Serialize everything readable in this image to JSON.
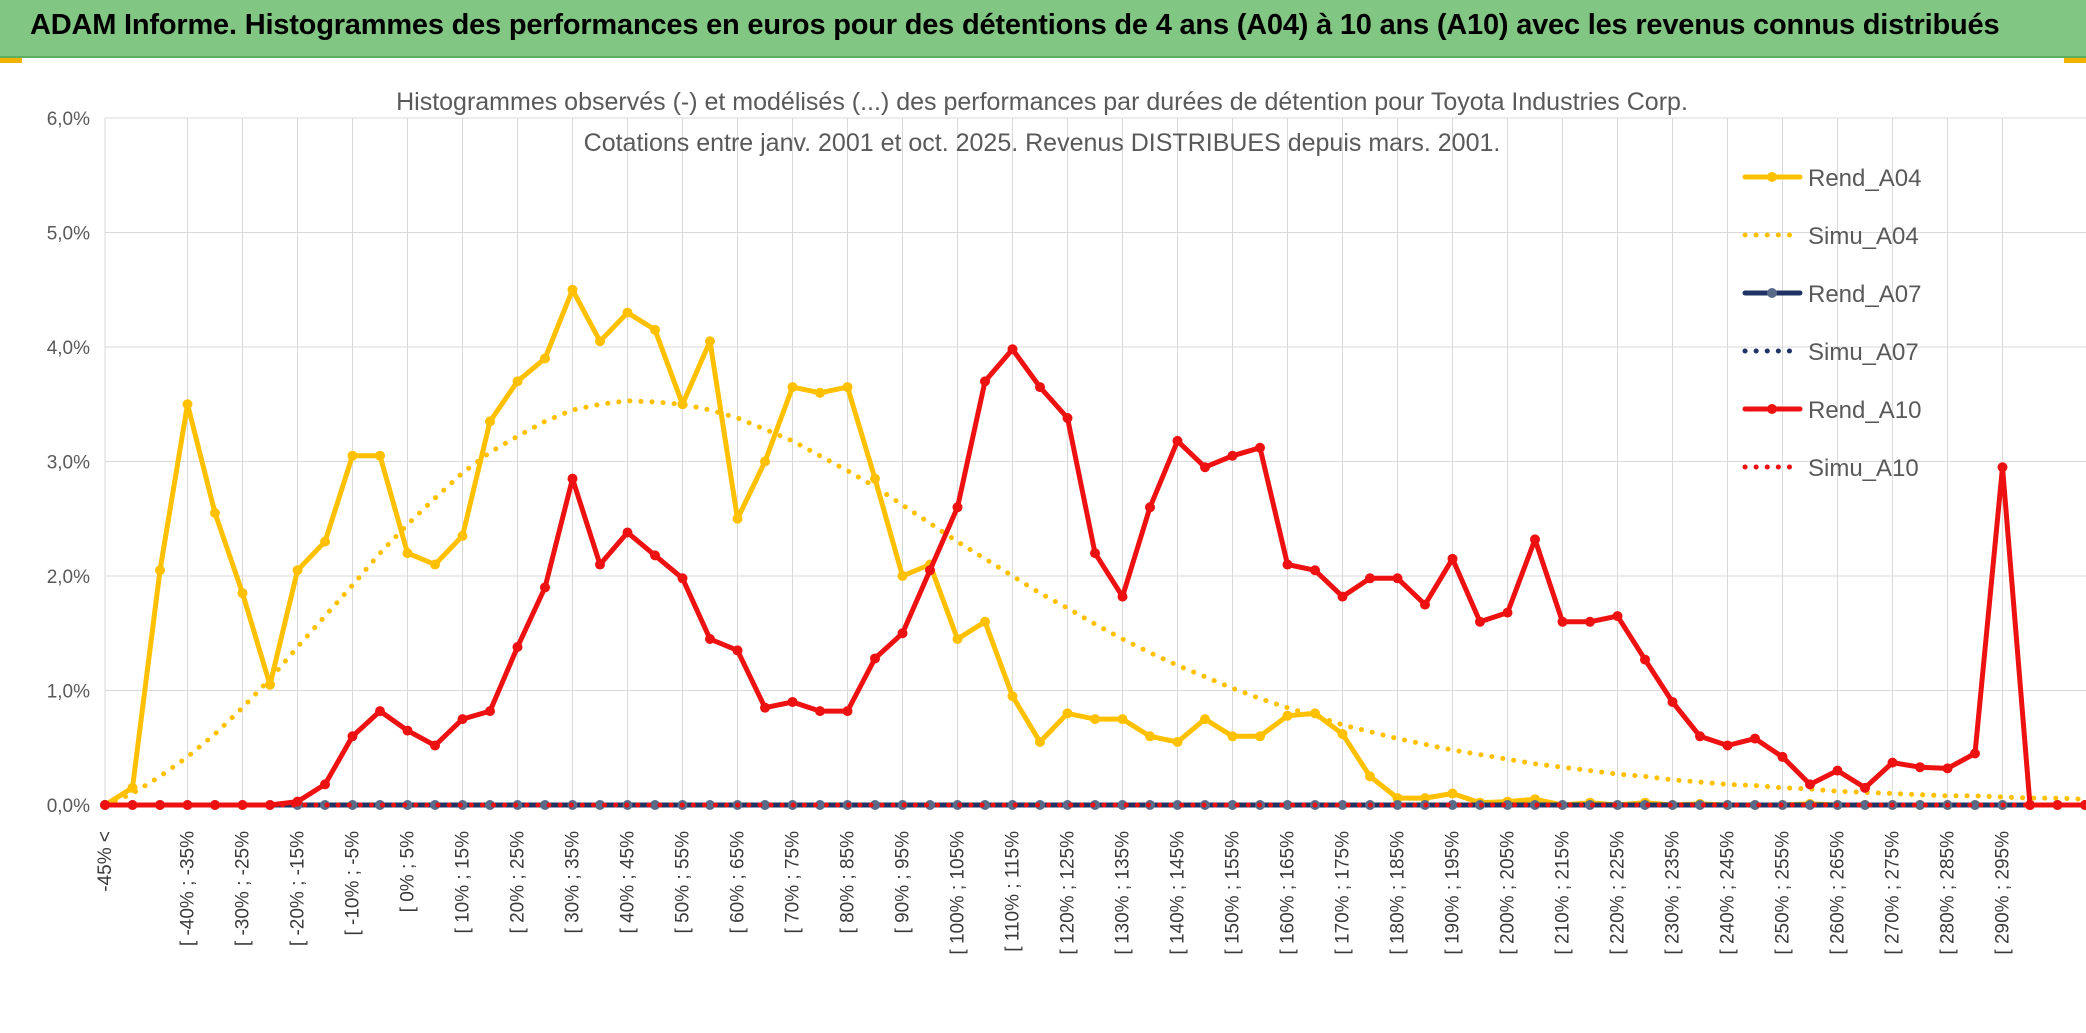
{
  "header": {
    "title": "ADAM Informe. Histogrammes des performances en euros pour des détentions de 4 ans (A04) à 10 ans (A10) avec les revenus connus distribués"
  },
  "colors": {
    "header_bg": "#82c683",
    "A04": "#ffc000",
    "A07": "#1f3364",
    "A10": "#ee1111",
    "grid": "#d9d9d9"
  },
  "chart_data": {
    "type": "line",
    "title": "Histogrammes observés (-) et modélisés (...) des performances par durées de détention pour Toyota Industries Corp.",
    "subtitle": "Cotations entre janv. 2001 et oct. 2025. Revenus DISTRIBUES depuis mars. 2001.",
    "xlabel": "",
    "ylabel": "",
    "ylim": [
      0,
      6.0
    ],
    "y_ticks": [
      "0,0%",
      "1,0%",
      "2,0%",
      "3,0%",
      "4,0%",
      "5,0%",
      "6,0%"
    ],
    "grid": true,
    "legend_position": "right",
    "x_labels": [
      "-45% <",
      "[ -40% ; -35%",
      "[ -30% ; -25%",
      "[ -20% ; -15%",
      "[ -10% ; -5%",
      "[ 0% ; 5%",
      "[ 10% ; 15%",
      "[ 20% ; 25%",
      "[ 30% ; 35%",
      "[ 40% ; 45%",
      "[ 50% ; 55%",
      "[ 60% ; 65%",
      "[ 70% ; 75%",
      "[ 80% ; 85%",
      "[ 90% ; 95%",
      "[ 100% ; 105%",
      "[ 110% ; 115%",
      "[ 120% ; 125%",
      "[ 130% ; 135%",
      "[ 140% ; 145%",
      "[ 150% ; 155%",
      "[ 160% ; 165%",
      "[ 170% ; 175%",
      "[ 180% ; 185%",
      "[ 190% ; 195%",
      "[ 200% ; 205%",
      "[ 210% ; 215%",
      "[ 220% ; 225%",
      "[ 230% ; 235%",
      "[ 240% ; 245%",
      "[ 250% ; 255%",
      "[ 260% ; 265%",
      "[ 270% ; 275%",
      "[ 280% ; 285%",
      "[ 290% ; 295%"
    ],
    "series": [
      {
        "name": "Rend_A04",
        "style": "solid",
        "color": "#ffc000",
        "values": [
          0.0,
          0.15,
          2.05,
          3.5,
          2.55,
          1.85,
          1.05,
          2.05,
          2.3,
          3.05,
          3.05,
          2.2,
          2.1,
          2.35,
          3.35,
          3.7,
          3.9,
          4.5,
          4.05,
          4.3,
          4.15,
          3.5,
          4.05,
          2.5,
          3.0,
          3.65,
          3.6,
          3.65,
          2.85,
          2.0,
          2.1,
          1.45,
          1.6,
          0.95,
          0.55,
          0.8,
          0.75,
          0.75,
          0.6,
          0.55,
          0.75,
          0.6,
          0.6,
          0.78,
          0.8,
          0.62,
          0.25,
          0.06,
          0.06,
          0.1,
          0.02,
          0.03,
          0.05,
          0.0,
          0.02,
          0.0,
          0.02,
          0.0,
          0.01,
          0.0,
          0.0,
          0.0,
          0.01,
          0.0,
          0.0,
          0.0,
          0.0,
          0.0,
          0.0,
          0.0,
          0.0,
          0.0,
          0.0,
          0.0,
          0.0
        ]
      },
      {
        "name": "Simu_A04",
        "style": "dotted",
        "color": "#ffc000",
        "values": [
          0.0,
          0.1,
          0.25,
          0.42,
          0.62,
          0.85,
          1.1,
          1.38,
          1.65,
          1.92,
          2.2,
          2.45,
          2.68,
          2.9,
          3.08,
          3.22,
          3.35,
          3.45,
          3.5,
          3.53,
          3.52,
          3.5,
          3.45,
          3.38,
          3.28,
          3.18,
          3.05,
          2.92,
          2.78,
          2.62,
          2.46,
          2.3,
          2.15,
          2.0,
          1.85,
          1.72,
          1.58,
          1.45,
          1.33,
          1.22,
          1.12,
          1.02,
          0.93,
          0.85,
          0.78,
          0.7,
          0.64,
          0.58,
          0.53,
          0.48,
          0.44,
          0.4,
          0.36,
          0.33,
          0.3,
          0.27,
          0.25,
          0.22,
          0.2,
          0.18,
          0.17,
          0.15,
          0.14,
          0.12,
          0.11,
          0.1,
          0.09,
          0.08,
          0.08,
          0.07,
          0.06,
          0.06,
          0.05,
          0.05,
          0.0
        ]
      },
      {
        "name": "Rend_A07",
        "style": "solid",
        "color": "#1f3364",
        "values": [
          0.0,
          0.0,
          0.0,
          0.0,
          0.0,
          0.0,
          0.0,
          0.0,
          0.0,
          0.0,
          0.0,
          0.0,
          0.0,
          0.0,
          0.0,
          0.0,
          0.0,
          0.0,
          0.0,
          0.0,
          0.0,
          0.0,
          0.0,
          0.0,
          0.0,
          0.0,
          0.0,
          0.0,
          0.0,
          0.0,
          0.0,
          0.0,
          0.0,
          0.0,
          0.0,
          0.0,
          0.0,
          0.0,
          0.0,
          0.0,
          0.0,
          0.0,
          0.0,
          0.0,
          0.0,
          0.0,
          0.0,
          0.0,
          0.0,
          0.0,
          0.0,
          0.0,
          0.0,
          0.0,
          0.0,
          0.0,
          0.0,
          0.0,
          0.0,
          0.0,
          0.0,
          0.0,
          0.0,
          0.0,
          0.0,
          0.0,
          0.0,
          0.0,
          0.0,
          0.0,
          0.0,
          0.0,
          0.0,
          0.0,
          0.0
        ]
      },
      {
        "name": "Simu_A07",
        "style": "dotted",
        "color": "#1f3364",
        "values": [
          0.0,
          0.0,
          0.0,
          0.0,
          0.0,
          0.0,
          0.0,
          0.0,
          0.0,
          0.0,
          0.0,
          0.0,
          0.0,
          0.0,
          0.0,
          0.0,
          0.0,
          0.0,
          0.0,
          0.0,
          0.0,
          0.0,
          0.0,
          0.0,
          0.0,
          0.0,
          0.0,
          0.0,
          0.0,
          0.0,
          0.0,
          0.0,
          0.0,
          0.0,
          0.0,
          0.0,
          0.0,
          0.0,
          0.0,
          0.0,
          0.0,
          0.0,
          0.0,
          0.0,
          0.0,
          0.0,
          0.0,
          0.0,
          0.0,
          0.0,
          0.0,
          0.0,
          0.0,
          0.0,
          0.0,
          0.0,
          0.0,
          0.0,
          0.0,
          0.0,
          0.0,
          0.0,
          0.0,
          0.0,
          0.0,
          0.0,
          0.0,
          0.0,
          0.0,
          0.0,
          0.0,
          0.0,
          0.0,
          0.0,
          0.0
        ]
      },
      {
        "name": "Rend_A10",
        "style": "solid",
        "color": "#ee1111",
        "values": [
          0.0,
          0.0,
          0.0,
          0.0,
          0.0,
          0.0,
          0.0,
          0.03,
          0.18,
          0.6,
          0.82,
          0.65,
          0.52,
          0.75,
          0.82,
          1.38,
          1.9,
          2.85,
          2.1,
          2.38,
          2.18,
          1.98,
          1.45,
          1.35,
          0.85,
          0.9,
          0.82,
          0.82,
          1.28,
          1.5,
          2.05,
          2.6,
          3.7,
          3.98,
          3.65,
          3.38,
          2.2,
          1.82,
          2.6,
          3.18,
          2.95,
          3.05,
          3.12,
          2.1,
          2.05,
          1.82,
          1.98,
          1.98,
          1.75,
          2.15,
          1.6,
          1.68,
          2.32,
          1.6,
          1.6,
          1.65,
          1.27,
          0.9,
          0.6,
          0.52,
          0.58,
          0.42,
          0.18,
          0.3,
          0.15,
          0.37,
          0.33,
          0.32,
          0.45,
          2.95,
          0.0,
          0.0,
          0.0,
          0.0,
          0.0
        ]
      },
      {
        "name": "Simu_A10",
        "style": "dotted",
        "color": "#ee1111",
        "values": [
          0.0,
          0.0,
          0.0,
          0.0,
          0.0,
          0.0,
          0.0,
          0.0,
          0.0,
          0.0,
          0.0,
          0.0,
          0.0,
          0.0,
          0.0,
          0.0,
          0.0,
          0.0,
          0.0,
          0.0,
          0.0,
          0.0,
          0.0,
          0.0,
          0.0,
          0.0,
          0.0,
          0.0,
          0.0,
          0.0,
          0.0,
          0.0,
          0.0,
          0.0,
          0.0,
          0.0,
          0.0,
          0.0,
          0.0,
          0.0,
          0.0,
          0.0,
          0.0,
          0.0,
          0.0,
          0.0,
          0.0,
          0.0,
          0.0,
          0.0,
          0.0,
          0.0,
          0.0,
          0.0,
          0.0,
          0.0,
          0.0,
          0.0,
          0.0,
          0.0,
          0.0,
          0.0,
          0.0,
          0.0,
          0.0,
          0.0,
          0.0,
          0.0,
          0.0,
          0.0,
          0.0,
          0.0,
          0.0,
          0.0,
          0.0
        ]
      }
    ]
  }
}
